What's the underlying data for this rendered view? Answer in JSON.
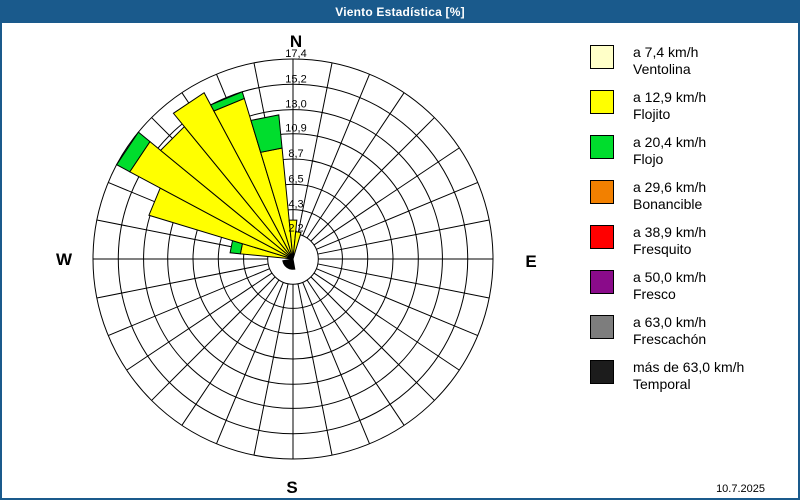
{
  "window": {
    "title": "Viento Estadística [%]",
    "title_bar_color": "#1A5A8C",
    "date": "10.7.2025"
  },
  "legend": {
    "items": [
      {
        "key": "ventolina",
        "speed": "a 7,4 km/h",
        "name": "Ventolina",
        "color": "#FFFFC8"
      },
      {
        "key": "flojito",
        "speed": "a 12,9 km/h",
        "name": "Flojito",
        "color": "#FFFF00"
      },
      {
        "key": "flojo",
        "speed": "a 20,4 km/h",
        "name": "Flojo",
        "color": "#00DD2D"
      },
      {
        "key": "bonancible",
        "speed": "a 29,6 km/h",
        "name": "Bonancible",
        "color": "#F28000"
      },
      {
        "key": "fresquito",
        "speed": "a 38,9 km/h",
        "name": "Fresquito",
        "color": "#FF0000"
      },
      {
        "key": "fresco",
        "speed": "a 50,0 km/h",
        "name": "Fresco",
        "color": "#8A0B8A"
      },
      {
        "key": "frescachon",
        "speed": "a 63,0 km/h",
        "name": "Frescachón",
        "color": "#7D7D7D"
      },
      {
        "key": "temporal",
        "speed": "más de 63,0 km/h",
        "name": "Temporal",
        "color": "#1C1C1C"
      }
    ]
  },
  "chart_data": {
    "type": "bar",
    "subtype": "wind-rose-polar-stacked-bar",
    "units": "%",
    "title": "Viento Estadística [%]",
    "sector_width_deg": 11.25,
    "grid": {
      "spokes": 32,
      "rings": 8,
      "on": true
    },
    "rings": {
      "values_pct": [
        2.2,
        4.3,
        6.5,
        8.7,
        10.9,
        13.0,
        15.2,
        17.4
      ],
      "labels": [
        "2,2",
        "4,3",
        "6,5",
        "8,7",
        "10,9",
        "13,0",
        "15,2",
        "17,4"
      ],
      "max_pct": 17.4
    },
    "cardinals": {
      "n": "N",
      "e": "E",
      "s": "S",
      "w": "W"
    },
    "petals": [
      {
        "direction_deg": 281.25,
        "stack": [
          {
            "class": "flojito",
            "to_pct": 4.6
          },
          {
            "class": "flojo",
            "to_pct": 5.5
          }
        ]
      },
      {
        "direction_deg": 292.5,
        "stack": [
          {
            "class": "flojito",
            "to_pct": 13.1
          }
        ]
      },
      {
        "direction_deg": 303.75,
        "stack": [
          {
            "class": "flojito",
            "to_pct": 16.1
          },
          {
            "class": "flojo",
            "to_pct": 17.4
          }
        ]
      },
      {
        "direction_deg": 315.0,
        "stack": [
          {
            "class": "flojito",
            "to_pct": 14.9
          }
        ]
      },
      {
        "direction_deg": 326.25,
        "stack": [
          {
            "class": "flojito",
            "to_pct": 16.4
          }
        ]
      },
      {
        "direction_deg": 337.5,
        "stack": [
          {
            "class": "flojito",
            "to_pct": 14.6
          },
          {
            "class": "flojo",
            "to_pct": 15.2
          }
        ]
      },
      {
        "direction_deg": 348.75,
        "stack": [
          {
            "class": "flojito",
            "to_pct": 9.7
          },
          {
            "class": "flojo",
            "to_pct": 12.6
          }
        ]
      },
      {
        "direction_deg": 0.0,
        "stack": [
          {
            "class": "flojito",
            "to_pct": 3.4
          }
        ]
      },
      {
        "direction_deg": 11.25,
        "stack": [
          {
            "class": "flojito",
            "to_pct": 2.4
          }
        ]
      }
    ],
    "center_marker": {
      "color": "#000000",
      "from_deg": 170,
      "to_deg": 260,
      "radius_pct": 0.9
    }
  }
}
